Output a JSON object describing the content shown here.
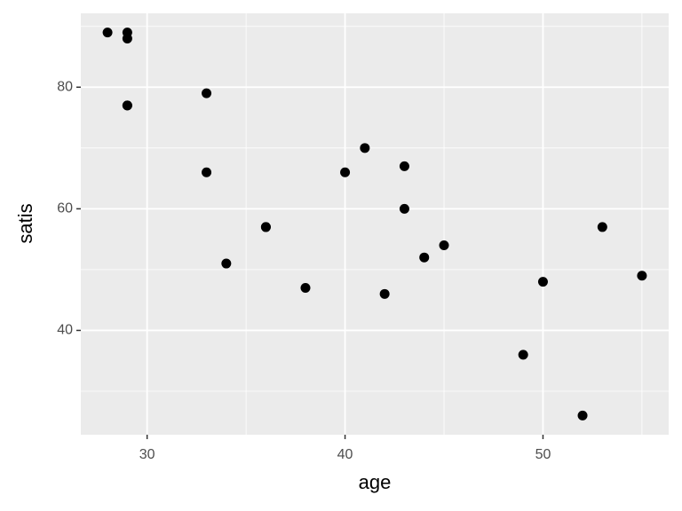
{
  "chart_data": {
    "type": "scatter",
    "x_label": "age",
    "y_label": "satis",
    "x": [
      50,
      36,
      40,
      41,
      28,
      49,
      42,
      45,
      52,
      29,
      29,
      43,
      38,
      34,
      36,
      33,
      33,
      55,
      29,
      44,
      43,
      53,
      29
    ],
    "values": [
      48,
      57,
      66,
      70,
      89,
      36,
      46,
      54,
      26,
      77,
      89,
      67,
      47,
      51,
      57,
      66,
      79,
      49,
      88,
      52,
      60,
      57,
      77
    ],
    "color": "#000000",
    "xlim": [
      26.65,
      56.35
    ],
    "xticks": [
      30,
      40,
      50
    ],
    "xminor": [
      35,
      45,
      55
    ],
    "ylim": [
      22.85,
      92.15
    ],
    "yticks": [
      40,
      60,
      80
    ],
    "yminor": [
      30,
      50,
      70,
      90
    ],
    "grid": true
  }
}
